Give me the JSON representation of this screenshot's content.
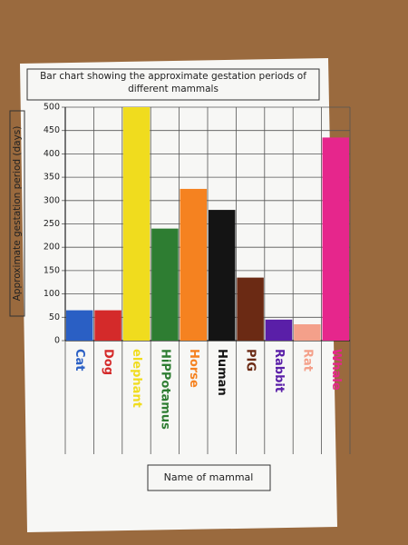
{
  "chart_data": {
    "type": "bar",
    "title": "Bar chart showing the approximate gestation periods of different mammals",
    "y_label": "Approximate gestation period (days)",
    "x_label": "Name of mammal",
    "categories": [
      "Cat",
      "Dog",
      "elephant",
      "HiPPotamus",
      "Horse",
      "Human",
      "PIG",
      "Rabbit",
      "Rat",
      "Whale"
    ],
    "values": [
      65,
      65,
      500,
      240,
      325,
      280,
      135,
      45,
      35,
      435
    ],
    "colors": [
      "#2a5fc4",
      "#d42a2a",
      "#f0dc1e",
      "#2e7d32",
      "#f58220",
      "#141414",
      "#6b2a14",
      "#5a1fa8",
      "#f4a08a",
      "#e6268c"
    ],
    "ylim": [
      0,
      500
    ],
    "yticks": [
      0,
      50,
      100,
      150,
      200,
      250,
      300,
      350,
      400,
      450,
      500
    ],
    "grid": true
  }
}
